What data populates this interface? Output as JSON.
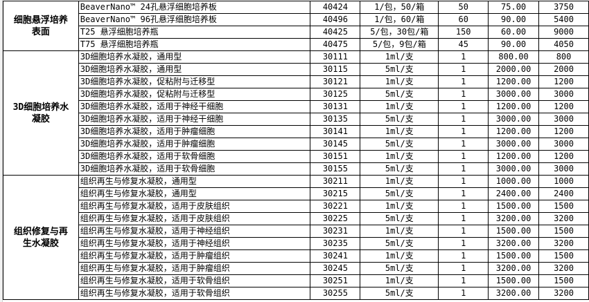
{
  "groups": [
    {
      "category": "细胞悬浮培养表面",
      "rows": [
        {
          "name": "BeaverNano™ 24孔悬浮细胞培养板",
          "code": "40424",
          "spec": "1/包，50/箱",
          "qty": "50",
          "price": "75.00",
          "total": "3750"
        },
        {
          "name": "BeaverNano™ 96孔悬浮细胞培养板",
          "code": "40496",
          "spec": "1/包，60/箱",
          "qty": "60",
          "price": "90.00",
          "total": "5400"
        },
        {
          "name": "T25 悬浮细胞培养瓶",
          "code": "40425",
          "spec": "5/包，30包/箱",
          "qty": "150",
          "price": "60.00",
          "total": "9000"
        },
        {
          "name": "T75 悬浮细胞培养瓶",
          "code": "40475",
          "spec": "5/包，9包/箱",
          "qty": "45",
          "price": "90.00",
          "total": "4050"
        }
      ]
    },
    {
      "category": "3D细胞培养水凝胶",
      "rows": [
        {
          "name": "3D细胞培养水凝胶，通用型",
          "code": "30111",
          "spec": "1ml/支",
          "qty": "1",
          "price": "800.00",
          "total": "800"
        },
        {
          "name": "3D细胞培养水凝胶，通用型",
          "code": "30115",
          "spec": "5ml/支",
          "qty": "1",
          "price": "2000.00",
          "total": "2000"
        },
        {
          "name": "3D细胞培养水凝胶，促粘附与迁移型",
          "code": "30121",
          "spec": "1ml/支",
          "qty": "1",
          "price": "1200.00",
          "total": "1200"
        },
        {
          "name": "3D细胞培养水凝胶，促粘附与迁移型",
          "code": "30125",
          "spec": "5ml/支",
          "qty": "1",
          "price": "3000.00",
          "total": "3000"
        },
        {
          "name": "3D细胞培养水凝胶，适用于神经干细胞",
          "code": "30131",
          "spec": "1ml/支",
          "qty": "1",
          "price": "1200.00",
          "total": "1200"
        },
        {
          "name": "3D细胞培养水凝胶，适用于神经干细胞",
          "code": "30135",
          "spec": "5ml/支",
          "qty": "1",
          "price": "3000.00",
          "total": "3000"
        },
        {
          "name": "3D细胞培养水凝胶，适用于肿瘤细胞",
          "code": "30141",
          "spec": "1ml/支",
          "qty": "1",
          "price": "1200.00",
          "total": "1200"
        },
        {
          "name": "3D细胞培养水凝胶，适用于肿瘤细胞",
          "code": "30145",
          "spec": "5ml/支",
          "qty": "1",
          "price": "3000.00",
          "total": "3000"
        },
        {
          "name": "3D细胞培养水凝胶，适用于软骨细胞",
          "code": "30151",
          "spec": "1ml/支",
          "qty": "1",
          "price": "1200.00",
          "total": "1200"
        },
        {
          "name": "3D细胞培养水凝胶，适用于软骨细胞",
          "code": "30155",
          "spec": "5ml/支",
          "qty": "1",
          "price": "3000.00",
          "total": "3000"
        }
      ]
    },
    {
      "category": "组织修复与再生水凝胶",
      "rows": [
        {
          "name": "组织再生与修复水凝胶，通用型",
          "code": "30211",
          "spec": "1ml/支",
          "qty": "1",
          "price": "1000.00",
          "total": "1000"
        },
        {
          "name": "组织再生与修复水凝胶，通用型",
          "code": "30215",
          "spec": "5ml/支",
          "qty": "1",
          "price": "2400.00",
          "total": "2400"
        },
        {
          "name": "组织再生与修复水凝胶，适用于皮肤组织",
          "code": "30221",
          "spec": "1ml/支",
          "qty": "1",
          "price": "1500.00",
          "total": "1500"
        },
        {
          "name": "组织再生与修复水凝胶，适用于皮肤组织",
          "code": "30225",
          "spec": "5ml/支",
          "qty": "1",
          "price": "3200.00",
          "total": "3200"
        },
        {
          "name": "组织再生与修复水凝胶，适用于神经组织",
          "code": "30231",
          "spec": "1ml/支",
          "qty": "1",
          "price": "1500.00",
          "total": "1500"
        },
        {
          "name": "组织再生与修复水凝胶，适用于神经组织",
          "code": "30235",
          "spec": "5ml/支",
          "qty": "1",
          "price": "3200.00",
          "total": "3200"
        },
        {
          "name": "组织再生与修复水凝胶，适用于肿瘤组织",
          "code": "30241",
          "spec": "1ml/支",
          "qty": "1",
          "price": "1500.00",
          "total": "1500"
        },
        {
          "name": "组织再生与修复水凝胶，适用于肿瘤组织",
          "code": "30245",
          "spec": "5ml/支",
          "qty": "1",
          "price": "3200.00",
          "total": "3200"
        },
        {
          "name": "组织再生与修复水凝胶，适用于软骨组织",
          "code": "30251",
          "spec": "1ml/支",
          "qty": "1",
          "price": "1500.00",
          "total": "1500"
        },
        {
          "name": "组织再生与修复水凝胶，适用于软骨组织",
          "code": "30255",
          "spec": "5ml/支",
          "qty": "1",
          "price": "3200.00",
          "total": "3200"
        }
      ]
    }
  ]
}
